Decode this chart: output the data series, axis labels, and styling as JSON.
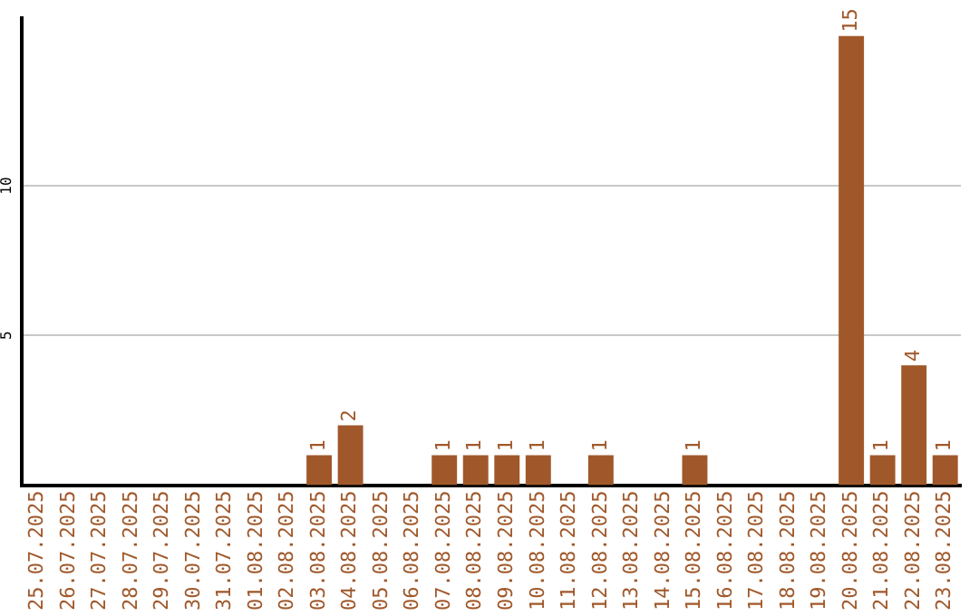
{
  "chart_data": {
    "type": "bar",
    "categories": [
      "25.07.2025",
      "26.07.2025",
      "27.07.2025",
      "28.07.2025",
      "29.07.2025",
      "30.07.2025",
      "31.07.2025",
      "01.08.2025",
      "02.08.2025",
      "03.08.2025",
      "04.08.2025",
      "05.08.2025",
      "06.08.2025",
      "07.08.2025",
      "08.08.2025",
      "09.08.2025",
      "10.08.2025",
      "11.08.2025",
      "12.08.2025",
      "13.08.2025",
      "14.08.2025",
      "15.08.2025",
      "16.08.2025",
      "17.08.2025",
      "18.08.2025",
      "19.08.2025",
      "20.08.2025",
      "21.08.2025",
      "22.08.2025",
      "23.08.2025"
    ],
    "values": [
      0,
      0,
      0,
      0,
      0,
      0,
      0,
      0,
      0,
      1,
      2,
      0,
      0,
      1,
      1,
      1,
      1,
      0,
      1,
      0,
      0,
      1,
      0,
      0,
      0,
      0,
      15,
      1,
      4,
      1
    ],
    "value_labels": [
      null,
      null,
      null,
      null,
      null,
      null,
      null,
      null,
      null,
      "1",
      "2",
      null,
      null,
      "1",
      "1",
      "1",
      "1",
      null,
      "1",
      null,
      null,
      "1",
      null,
      null,
      null,
      null,
      "15",
      "1",
      "4",
      "1"
    ],
    "color": "#a0582a",
    "ylim": [
      0,
      15.6
    ],
    "yticks": [
      5,
      10
    ],
    "grid": "y",
    "legend": false
  }
}
